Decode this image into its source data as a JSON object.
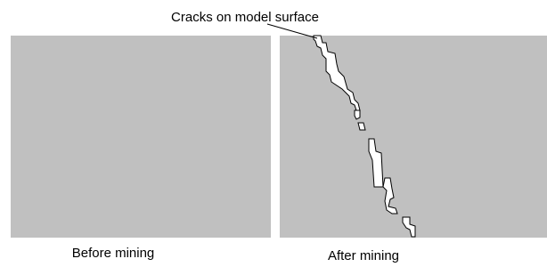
{
  "annotation": "Cracks on model surface",
  "panels": [
    {
      "label": "Before mining"
    },
    {
      "label": "After mining"
    }
  ]
}
